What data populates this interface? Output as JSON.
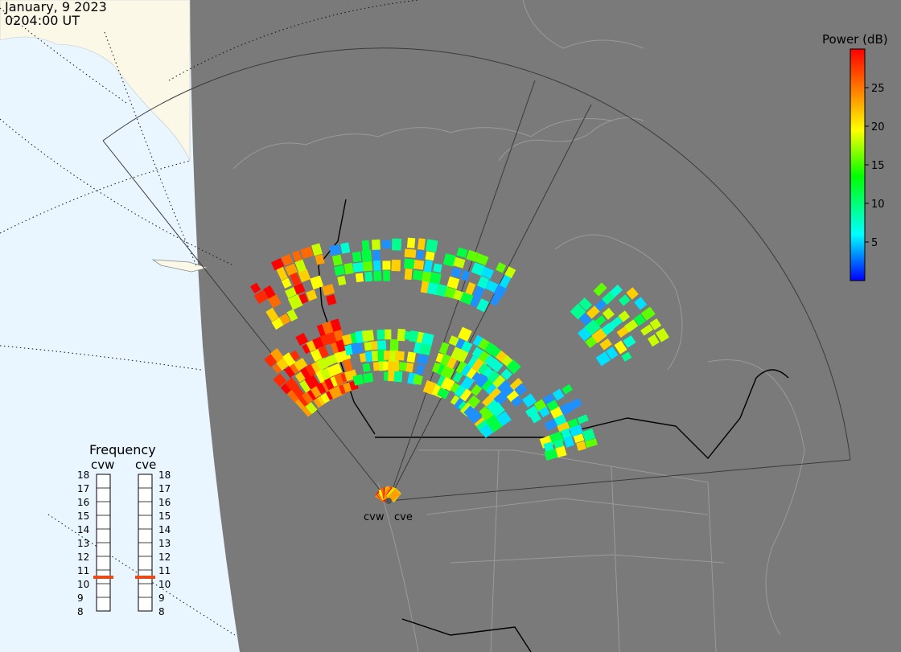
{
  "header": {
    "date": "January, 9 2023",
    "time": "0204:00 UT"
  },
  "colors": {
    "ocean": "#eaf6ff",
    "land_light": "#fbf8e8",
    "night": "#7a7a7a",
    "night_line": "#9a9a9a",
    "border": "#000000",
    "fov": "#444444"
  },
  "colorbar": {
    "title": "Power (dB)",
    "ticks": [
      "25",
      "20",
      "15",
      "10",
      "5"
    ],
    "tick_values": [
      25,
      20,
      15,
      10,
      5
    ],
    "range": [
      0,
      30
    ],
    "scale": [
      "#0000ff",
      "#00ffff",
      "#00ff00",
      "#ffff00",
      "#ff8000",
      "#ff0000"
    ]
  },
  "frequency": {
    "title": "Frequency",
    "radars": [
      {
        "name": "cvw",
        "freq_mhz": 11.0
      },
      {
        "name": "cve",
        "freq_mhz": 11.0
      }
    ],
    "scale": [
      "18",
      "17",
      "16",
      "15",
      "14",
      "13",
      "12",
      "11",
      "10",
      "9",
      "8"
    ],
    "marker_color": "#e84a1a"
  },
  "sites": [
    {
      "label": "cvw"
    },
    {
      "label": "cve"
    }
  ]
}
